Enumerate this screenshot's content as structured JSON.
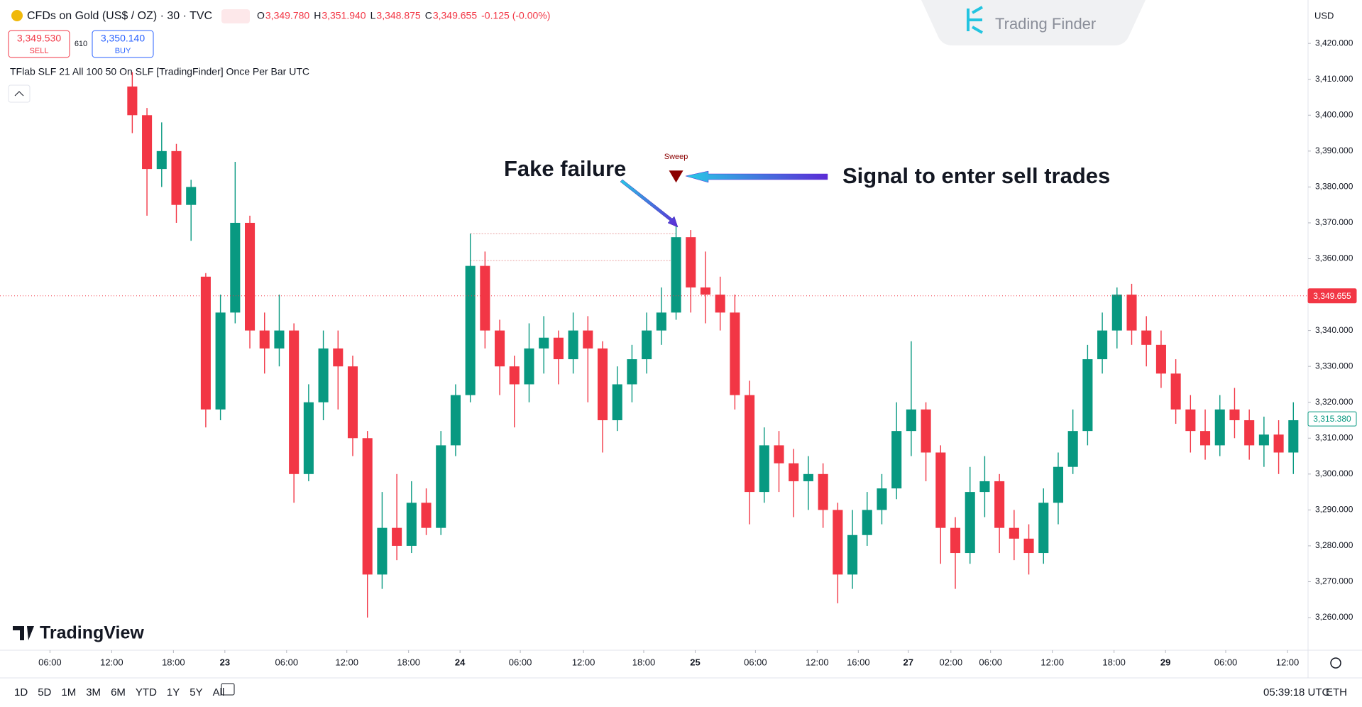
{
  "header": {
    "symbol": "CFDs on Gold (US$ / OZ) · 30 · TVC",
    "legend": [
      {
        "key": "O",
        "value": "3,349.780"
      },
      {
        "key": "H",
        "value": "3,351.940"
      },
      {
        "key": "L",
        "value": "3,348.875"
      },
      {
        "key": "C",
        "value": "3,349.655"
      }
    ],
    "change": "-0.125 (-0.00%)",
    "sell_price": "3,349.530",
    "sell": "SELL",
    "spread": "610",
    "buy_price": "3,350.140",
    "buy": "BUY",
    "indicator": "TFlab SLF 21 All 100 50 On SLF [TradingFinder] Once Per Bar UTC",
    "currency": "USD",
    "watermark": "Trading Finder",
    "logo": "TradingView"
  },
  "chart_data": {
    "type": "candlestick",
    "up_color": "#089981",
    "down_color": "#f23645",
    "ohlc": [
      [
        3408,
        3412,
        3395,
        3400
      ],
      [
        3400,
        3402,
        3372,
        3385
      ],
      [
        3385,
        3398,
        3380,
        3390
      ],
      [
        3390,
        3392,
        3370,
        3375
      ],
      [
        3375,
        3382,
        3365,
        3380
      ],
      [
        3355,
        3356,
        3313,
        3318
      ],
      [
        3318,
        3350,
        3315,
        3345
      ],
      [
        3345,
        3387,
        3342,
        3370
      ],
      [
        3370,
        3372,
        3335,
        3340
      ],
      [
        3340,
        3345,
        3328,
        3335
      ],
      [
        3335,
        3350,
        3330,
        3340
      ],
      [
        3340,
        3342,
        3292,
        3300
      ],
      [
        3300,
        3325,
        3298,
        3320
      ],
      [
        3320,
        3340,
        3315,
        3335
      ],
      [
        3335,
        3340,
        3318,
        3330
      ],
      [
        3330,
        3333,
        3305,
        3310
      ],
      [
        3310,
        3312,
        3260,
        3272
      ],
      [
        3272,
        3295,
        3268,
        3285
      ],
      [
        3285,
        3300,
        3276,
        3280
      ],
      [
        3280,
        3298,
        3278,
        3292
      ],
      [
        3292,
        3296,
        3283,
        3285
      ],
      [
        3285,
        3312,
        3283,
        3308
      ],
      [
        3308,
        3325,
        3305,
        3322
      ],
      [
        3322,
        3367,
        3320,
        3358
      ],
      [
        3358,
        3362,
        3335,
        3340
      ],
      [
        3340,
        3343,
        3322,
        3330
      ],
      [
        3330,
        3333,
        3313,
        3325
      ],
      [
        3325,
        3342,
        3320,
        3335
      ],
      [
        3335,
        3344,
        3328,
        3338
      ],
      [
        3338,
        3340,
        3325,
        3332
      ],
      [
        3332,
        3345,
        3328,
        3340
      ],
      [
        3340,
        3344,
        3320,
        3335
      ],
      [
        3335,
        3337,
        3306,
        3315
      ],
      [
        3315,
        3330,
        3312,
        3325
      ],
      [
        3325,
        3336,
        3320,
        3332
      ],
      [
        3332,
        3345,
        3328,
        3340
      ],
      [
        3340,
        3352,
        3336,
        3345
      ],
      [
        3345,
        3369,
        3343,
        3366
      ],
      [
        3366,
        3368,
        3345,
        3352
      ],
      [
        3352,
        3362,
        3342,
        3350
      ],
      [
        3350,
        3355,
        3340,
        3345
      ],
      [
        3345,
        3350,
        3318,
        3322
      ],
      [
        3322,
        3326,
        3286,
        3295
      ],
      [
        3295,
        3313,
        3292,
        3308
      ],
      [
        3308,
        3312,
        3295,
        3303
      ],
      [
        3303,
        3307,
        3288,
        3298
      ],
      [
        3298,
        3305,
        3290,
        3300
      ],
      [
        3300,
        3303,
        3285,
        3290
      ],
      [
        3290,
        3292,
        3264,
        3272
      ],
      [
        3272,
        3290,
        3268,
        3283
      ],
      [
        3283,
        3295,
        3280,
        3290
      ],
      [
        3290,
        3300,
        3286,
        3296
      ],
      [
        3296,
        3320,
        3293,
        3312
      ],
      [
        3312,
        3337,
        3305,
        3318
      ],
      [
        3318,
        3320,
        3298,
        3306
      ],
      [
        3306,
        3308,
        3275,
        3285
      ],
      [
        3285,
        3288,
        3268,
        3278
      ],
      [
        3278,
        3302,
        3275,
        3295
      ],
      [
        3295,
        3305,
        3288,
        3298
      ],
      [
        3298,
        3300,
        3278,
        3285
      ],
      [
        3285,
        3290,
        3276,
        3282
      ],
      [
        3282,
        3286,
        3272,
        3278
      ],
      [
        3278,
        3296,
        3275,
        3292
      ],
      [
        3292,
        3306,
        3286,
        3302
      ],
      [
        3302,
        3318,
        3300,
        3312
      ],
      [
        3312,
        3336,
        3308,
        3332
      ],
      [
        3332,
        3345,
        3328,
        3340
      ],
      [
        3340,
        3352,
        3335,
        3350
      ],
      [
        3350,
        3353,
        3336,
        3340
      ],
      [
        3340,
        3344,
        3330,
        3336
      ],
      [
        3336,
        3340,
        3324,
        3328
      ],
      [
        3328,
        3332,
        3314,
        3318
      ],
      [
        3318,
        3322,
        3306,
        3312
      ],
      [
        3312,
        3318,
        3304,
        3308
      ],
      [
        3308,
        3322,
        3305,
        3318
      ],
      [
        3318,
        3324,
        3310,
        3315
      ],
      [
        3315,
        3318,
        3304,
        3308
      ],
      [
        3308,
        3316,
        3302,
        3311
      ],
      [
        3311,
        3315,
        3300,
        3306
      ],
      [
        3306,
        3320,
        3300,
        3315
      ]
    ],
    "xlim": [
      -9,
      80
    ],
    "ylim": [
      3251.7,
      3432.1
    ],
    "xticks": [
      {
        "value": -5.6,
        "label": "06:00"
      },
      {
        "value": -1.4,
        "label": "12:00"
      },
      {
        "value": 2.8,
        "label": "18:00"
      },
      {
        "value": 6.3,
        "label": "23"
      },
      {
        "value": 10.5,
        "label": "06:00"
      },
      {
        "value": 14.6,
        "label": "12:00"
      },
      {
        "value": 18.8,
        "label": "18:00"
      },
      {
        "value": 22.3,
        "label": "24"
      },
      {
        "value": 26.4,
        "label": "06:00"
      },
      {
        "value": 30.7,
        "label": "12:00"
      },
      {
        "value": 34.8,
        "label": "18:00"
      },
      {
        "value": 38.3,
        "label": "25"
      },
      {
        "value": 42.4,
        "label": "06:00"
      },
      {
        "value": 46.6,
        "label": "12:00"
      },
      {
        "value": 49.4,
        "label": "16:00"
      },
      {
        "value": 52.8,
        "label": "27"
      },
      {
        "value": 55.7,
        "label": "02:00"
      },
      {
        "value": 58.4,
        "label": "06:00"
      },
      {
        "value": 62.6,
        "label": "12:00"
      },
      {
        "value": 66.8,
        "label": "18:00"
      },
      {
        "value": 70.3,
        "label": "29"
      },
      {
        "value": 74.4,
        "label": "06:00"
      },
      {
        "value": 78.6,
        "label": "12:00"
      }
    ],
    "yticks": [
      {
        "value": 3420,
        "label": "3,420.000"
      },
      {
        "value": 3410,
        "label": "3,410.000"
      },
      {
        "value": 3400,
        "label": "3,400.000"
      },
      {
        "value": 3390,
        "label": "3,390.000"
      },
      {
        "value": 3380,
        "label": "3,380.000"
      },
      {
        "value": 3370,
        "label": "3,370.000"
      },
      {
        "value": 3360,
        "label": "3,360.000"
      },
      {
        "value": 3350,
        "label": "3,350.000"
      },
      {
        "value": 3340,
        "label": "3,340.000"
      },
      {
        "value": 3330,
        "label": "3,330.000"
      },
      {
        "value": 3320,
        "label": "3,320.000"
      },
      {
        "value": 3310,
        "label": "3,310.000"
      },
      {
        "value": 3300,
        "label": "3,300.000"
      },
      {
        "value": 3290,
        "label": "3,290.000"
      },
      {
        "value": 3280,
        "label": "3,280.000"
      },
      {
        "value": 3270,
        "label": "3,270.000"
      },
      {
        "value": 3260,
        "label": "3,260.000"
      }
    ],
    "price_tags": [
      {
        "value": 3349.655,
        "label": "3,349.655",
        "color": "#f23645"
      },
      {
        "value": 3315.38,
        "label": "3,315.380",
        "color": "#089981"
      }
    ],
    "levels": [
      {
        "price": 3367,
        "from": 23,
        "to": 37
      },
      {
        "price": 3359.5,
        "from": 23,
        "to": 37
      }
    ],
    "signal": {
      "label": "Sweep",
      "index": 37,
      "price": 3383,
      "color": "#8b0000"
    },
    "annotations": [
      "Fake failure",
      "Signal to enter sell trades"
    ]
  },
  "toolbar": {
    "ranges": [
      "1D",
      "5D",
      "1M",
      "3M",
      "6M",
      "YTD",
      "1Y",
      "5Y",
      "All"
    ],
    "clock": "05:39:18 UTC",
    "session": "ETH"
  }
}
